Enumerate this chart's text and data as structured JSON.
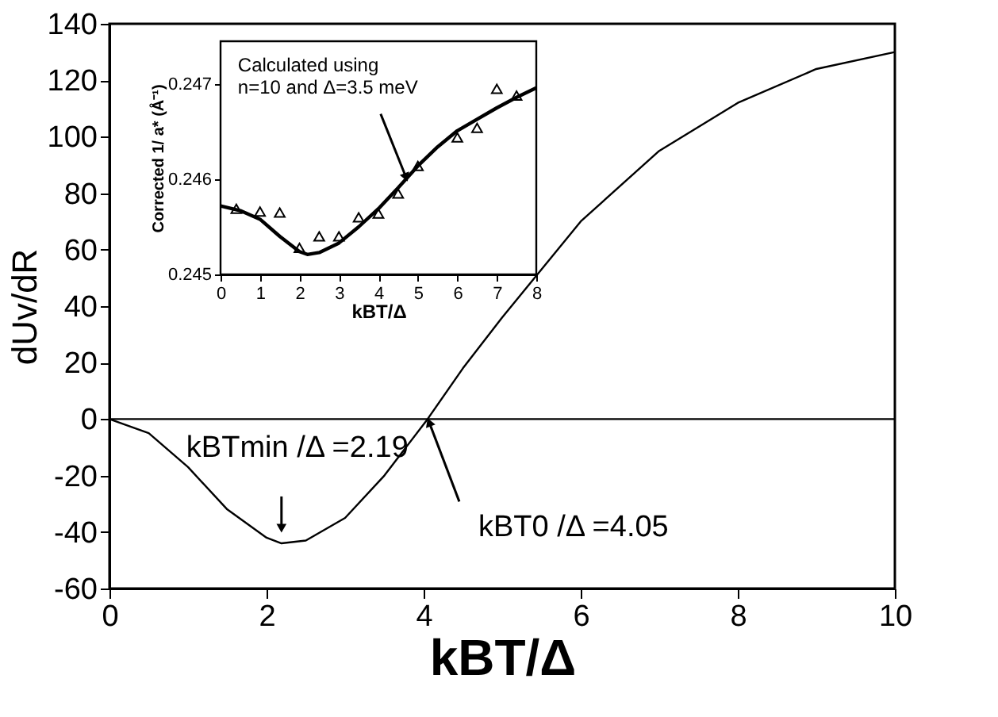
{
  "chart_data": [
    {
      "type": "line",
      "xlabel": "kBT/Δ",
      "ylabel": "dUv/dR",
      "xlim": [
        0,
        10
      ],
      "ylim": [
        -60,
        140
      ],
      "xticks": [
        0,
        2,
        4,
        6,
        8,
        10
      ],
      "yticks": [
        -60,
        -40,
        -20,
        0,
        20,
        40,
        60,
        80,
        100,
        120,
        140
      ],
      "series": [
        {
          "color": "#000000",
          "x": [
            0,
            0.5,
            1,
            1.5,
            2,
            2.19,
            2.5,
            3,
            3.5,
            4.05,
            4.5,
            5,
            6,
            7,
            8,
            9,
            10
          ],
          "values": [
            0,
            -5,
            -17,
            -32,
            -42,
            -44,
            -43,
            -35,
            -20,
            0,
            18,
            36,
            70,
            95,
            112,
            124,
            130
          ]
        }
      ],
      "ref_lines": [
        {
          "axis": "y",
          "value": 0,
          "color": "#000000"
        }
      ],
      "annotations": [
        {
          "text": "kBTmin /Δ =2.19",
          "x": 2.19,
          "y": -42
        },
        {
          "text": "kBT0 /Δ =4.05",
          "x": 4.05,
          "y": 0
        }
      ]
    },
    {
      "type": "line",
      "xlabel": "kBT/Δ",
      "ylabel": "Corrected 1/ a* (Å⁻¹)",
      "xlim": [
        0,
        8
      ],
      "ylim": [
        0.245,
        0.24745
      ],
      "xticks": [
        0,
        1,
        2,
        3,
        4,
        5,
        6,
        7,
        8
      ],
      "yticks": [
        0.245,
        0.246,
        0.247
      ],
      "series": [
        {
          "type": "line",
          "color": "#000000",
          "x": [
            0,
            0.5,
            1,
            1.5,
            2,
            2.2,
            2.5,
            3,
            3.5,
            4,
            4.5,
            5,
            5.5,
            6,
            6.5,
            7,
            7.5,
            8
          ],
          "values": [
            0.24572,
            0.24567,
            0.24558,
            0.2454,
            0.24524,
            0.24521,
            0.24523,
            0.24533,
            0.2455,
            0.24569,
            0.24591,
            0.24614,
            0.24634,
            0.24651,
            0.24663,
            0.24675,
            0.24686,
            0.24696
          ]
        },
        {
          "type": "scatter",
          "marker": "triangle",
          "color": "#000000",
          "x": [
            0.4,
            1,
            1.5,
            2,
            2.5,
            3,
            3.5,
            4,
            4.5,
            5,
            6,
            6.5,
            7,
            7.5
          ],
          "values": [
            0.24569,
            0.24566,
            0.24565,
            0.24528,
            0.2454,
            0.2454,
            0.2456,
            0.24564,
            0.24585,
            0.24614,
            0.24644,
            0.24654,
            0.24695,
            0.24688
          ]
        }
      ],
      "annotations": [
        {
          "text": "Calculated using\nn=10 and Δ=3.5 meV",
          "x": 4.7,
          "y": 0.24602
        }
      ]
    }
  ]
}
